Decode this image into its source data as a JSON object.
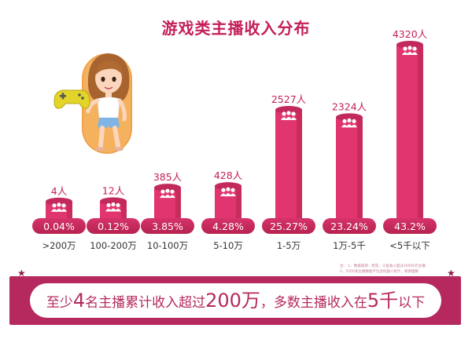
{
  "chart_data": {
    "type": "bar",
    "title": "游戏类主播收入分布",
    "categories": [
      ">200万",
      "100-200万",
      "10-100万",
      "5-10万",
      "1-5万",
      "1万-5千",
      "<5千以下"
    ],
    "counts": [
      4,
      12,
      385,
      428,
      2527,
      2324,
      4320
    ],
    "count_labels": [
      "4人",
      "12人",
      "385人",
      "428人",
      "2527人",
      "2324人",
      "4320人"
    ],
    "percent_labels": [
      "0.04%",
      "0.12%",
      "3.85%",
      "4.28%",
      "25.27%",
      "23.24%",
      "43.2%"
    ],
    "percentages": [
      0.04,
      0.12,
      3.85,
      4.28,
      25.27,
      23.24,
      43.2
    ],
    "ylim": [
      0,
      4320
    ],
    "xlabel": "",
    "ylabel": ""
  },
  "notes": [
    "注： 1、数据来源：爬虫，斗鱼收入超过20000元主播",
    "2、5500某主播数据不包含机器人统计，谢谢理解"
  ],
  "banner": {
    "part1": "至少",
    "num1": "4",
    "part2": "名主播累计收入超过",
    "num2": "200万",
    "part3": "，多数主播收入在",
    "num3": "5千",
    "part4": "以下"
  },
  "colors": {
    "accent": "#c41e5a",
    "bar": "#e0356e",
    "bar_side": "#b2244f",
    "bar_top": "#c22a5c",
    "pill": "#c42a5c",
    "banner": "#b5295e"
  },
  "icons": {
    "person_group": "person-group-icon",
    "character": "girl-character-illustration",
    "controller": "game-controller-icon"
  }
}
